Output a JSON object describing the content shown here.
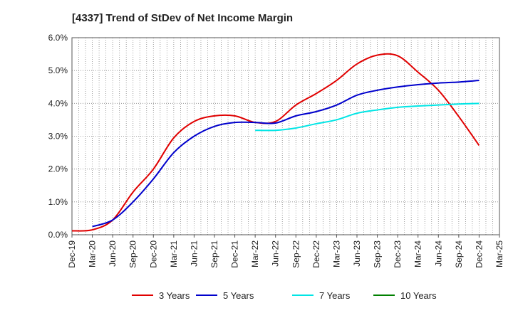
{
  "chart_data": {
    "type": "line",
    "title": "[4337]  Trend of StDev of Net Income Margin",
    "xlabel": "",
    "ylabel": "",
    "ylim": [
      0,
      6
    ],
    "y_ticks": [
      "0.0%",
      "1.0%",
      "2.0%",
      "3.0%",
      "4.0%",
      "5.0%",
      "6.0%"
    ],
    "categories": [
      "Dec-19",
      "Mar-20",
      "Jun-20",
      "Sep-20",
      "Dec-20",
      "Mar-21",
      "Jun-21",
      "Sep-21",
      "Dec-21",
      "Mar-22",
      "Jun-22",
      "Sep-22",
      "Dec-22",
      "Mar-23",
      "Jun-23",
      "Sep-23",
      "Dec-23",
      "Mar-24",
      "Jun-24",
      "Sep-24",
      "Dec-24",
      "Mar-25"
    ],
    "grid": true,
    "legend_position": "bottom",
    "series": [
      {
        "name": "3 Years",
        "color": "#e00000",
        "values": [
          0.12,
          0.15,
          0.45,
          1.3,
          2.0,
          2.95,
          3.45,
          3.62,
          3.62,
          3.42,
          3.45,
          3.95,
          4.3,
          4.7,
          5.2,
          5.47,
          5.45,
          4.95,
          4.4,
          3.6,
          2.72,
          null
        ]
      },
      {
        "name": "5 Years",
        "color": "#0000cc",
        "values": [
          null,
          0.25,
          0.45,
          1.0,
          1.7,
          2.5,
          3.0,
          3.3,
          3.42,
          3.42,
          3.4,
          3.62,
          3.75,
          3.95,
          4.25,
          4.4,
          4.5,
          4.57,
          4.62,
          4.65,
          4.7,
          null
        ]
      },
      {
        "name": "7 Years",
        "color": "#00e5e5",
        "values": [
          null,
          null,
          null,
          null,
          null,
          null,
          null,
          null,
          null,
          3.18,
          3.18,
          3.25,
          3.38,
          3.5,
          3.7,
          3.8,
          3.88,
          3.92,
          3.95,
          3.98,
          4.0,
          null
        ]
      },
      {
        "name": "10 Years",
        "color": "#008000",
        "values": [
          null,
          null,
          null,
          null,
          null,
          null,
          null,
          null,
          null,
          null,
          null,
          null,
          null,
          null,
          null,
          null,
          null,
          null,
          null,
          null,
          null,
          null
        ]
      }
    ]
  }
}
